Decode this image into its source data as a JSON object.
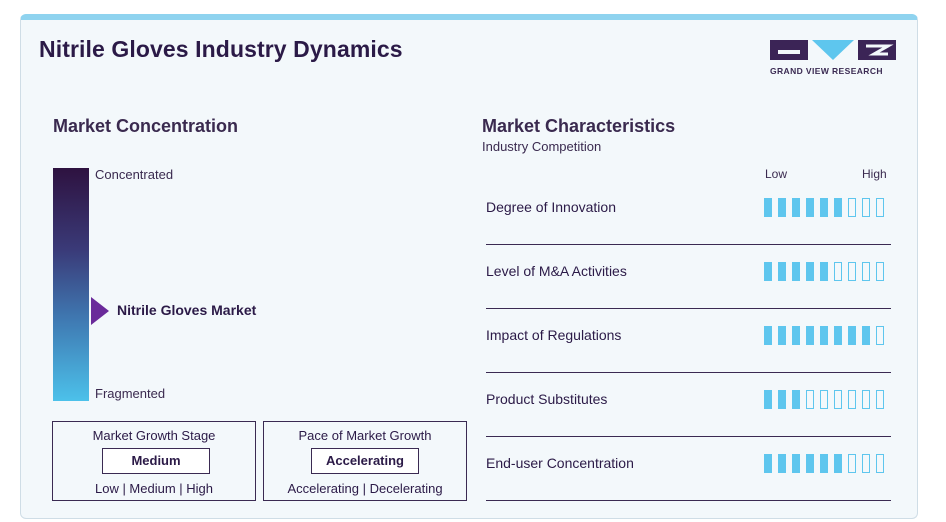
{
  "header": {
    "title": "Nitrile Gloves Industry Dynamics",
    "logo_text": "GRAND VIEW RESEARCH"
  },
  "concentration": {
    "title": "Market Concentration",
    "top_label": "Concentrated",
    "bottom_label": "Fragmented",
    "marker_label": "Nitrile Gloves Market",
    "marker_level": 0.62
  },
  "growth_stage": {
    "title": "Market Growth Stage",
    "value": "Medium",
    "scale": "Low | Medium | High"
  },
  "growth_pace": {
    "title": "Pace of Market Growth",
    "value": "Accelerating",
    "scale": "Accelerating | Decelerating"
  },
  "characteristics": {
    "title": "Market Characteristics",
    "subtitle": "Industry Competition",
    "low_label": "Low",
    "high_label": "High",
    "total_segments": 9,
    "rows": [
      {
        "label": "Degree of Innovation",
        "filled": 6
      },
      {
        "label": "Level of M&A Activities",
        "filled": 5
      },
      {
        "label": "Impact of Regulations",
        "filled": 8
      },
      {
        "label": "Product Substitutes",
        "filled": 3
      },
      {
        "label": "End-user Concentration",
        "filled": 6
      }
    ]
  },
  "colors": {
    "accent": "#5ec6ee",
    "title": "#2b1a47",
    "marker": "#6a2a9a"
  }
}
